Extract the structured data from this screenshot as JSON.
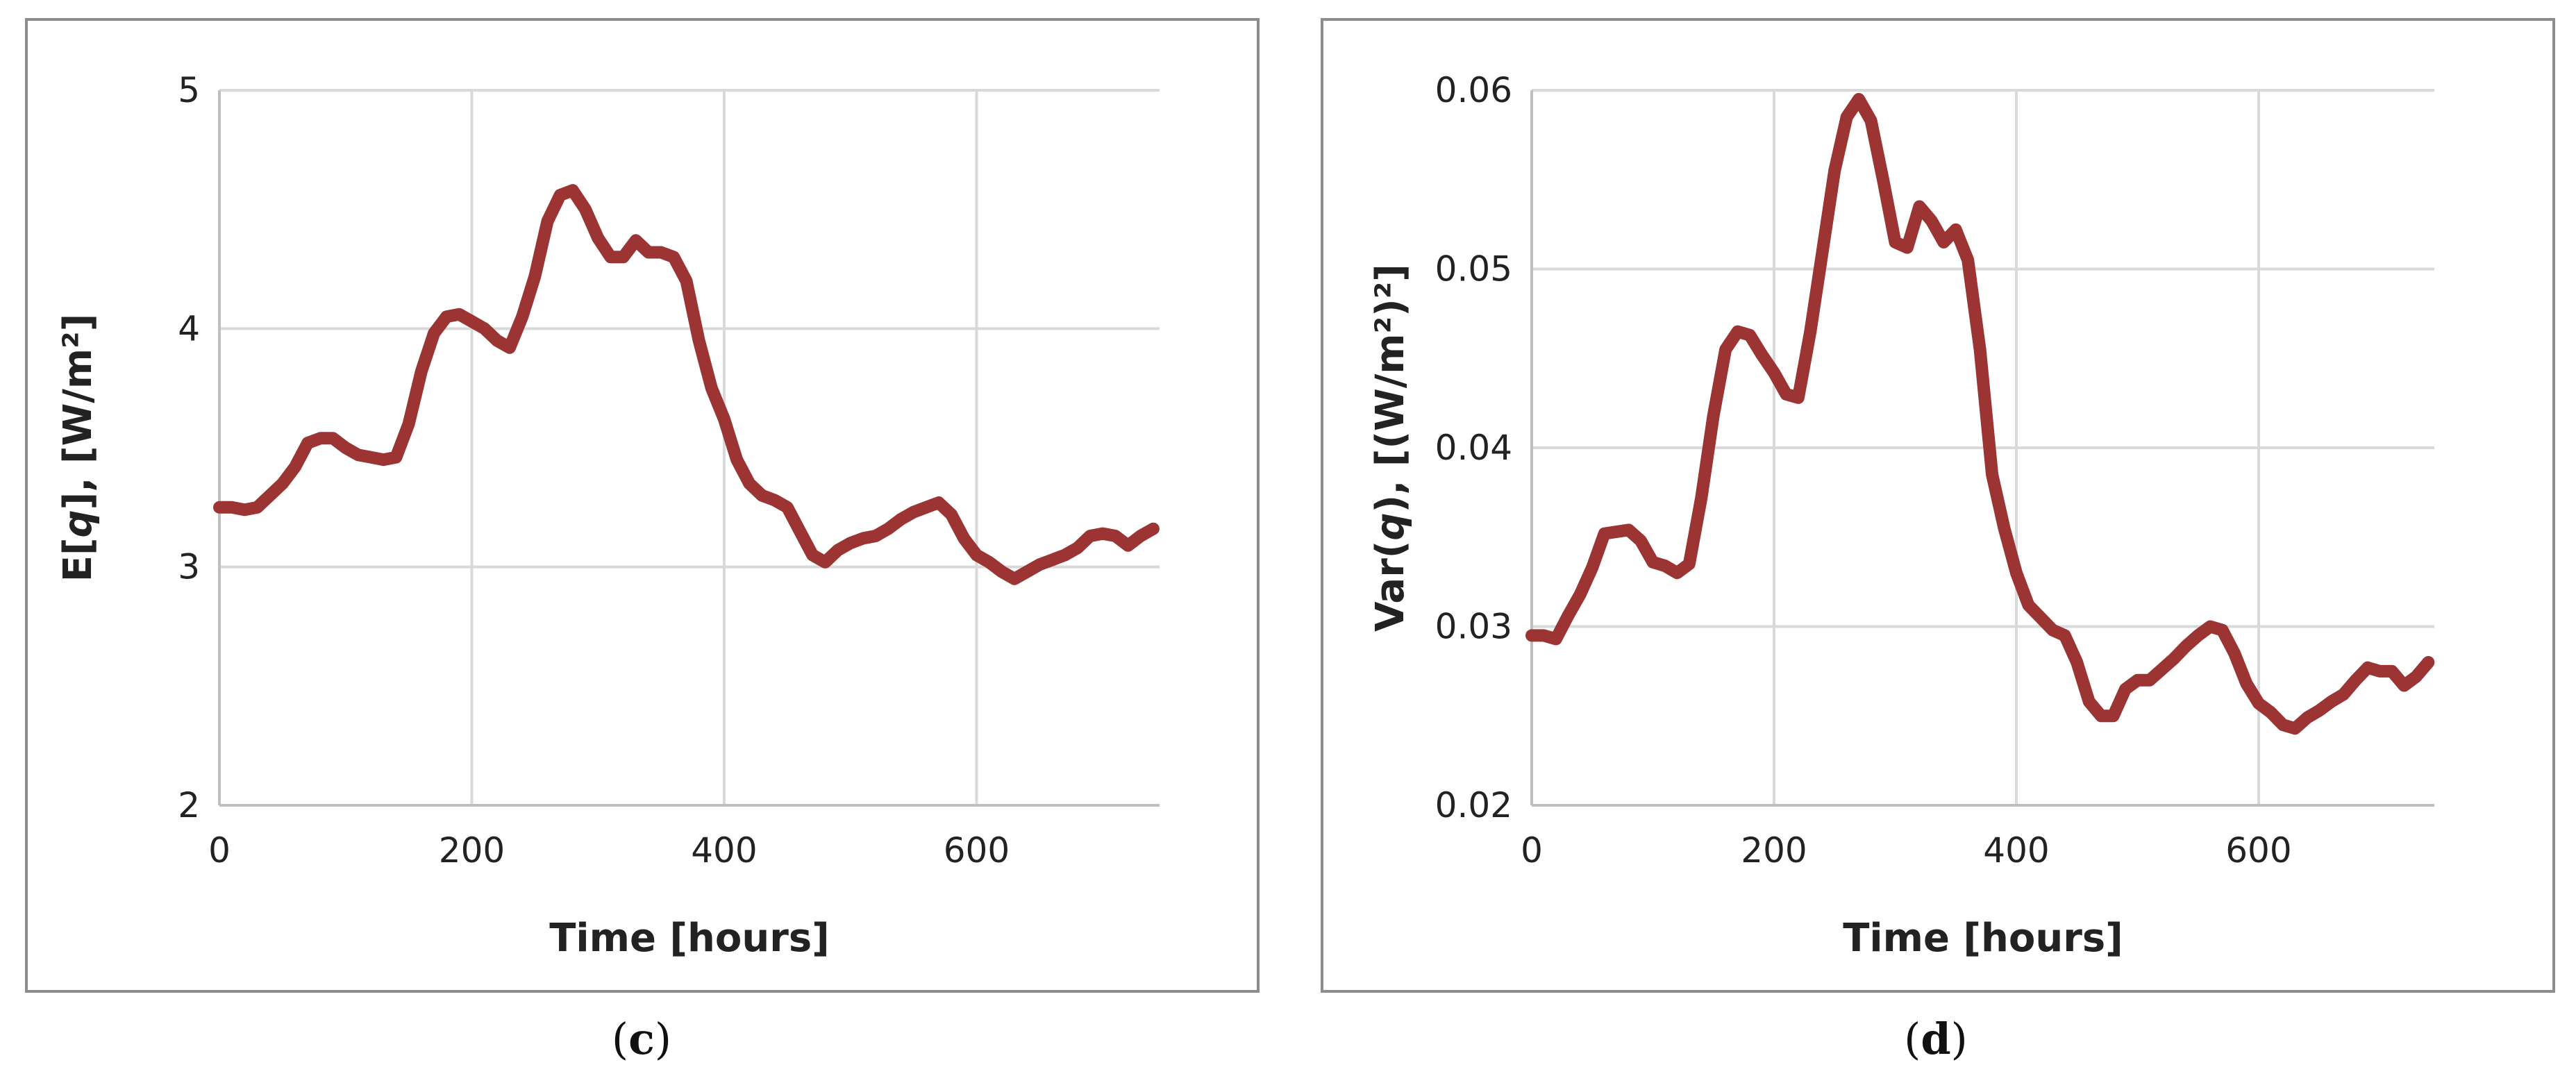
{
  "colors": {
    "series": "#9b3432",
    "grid": "#d9d9d9",
    "axis": "#bfbfbf",
    "frame": "#8c8c8c"
  },
  "captions": {
    "c_open": "(",
    "c_letter": "c",
    "c_close": ")",
    "d_open": "(",
    "d_letter": "d",
    "d_close": ")"
  },
  "chart_data": [
    {
      "type": "line",
      "panel": "c",
      "title": "",
      "xlabel": "Time [hours]",
      "ylabel": "E[q], [W/m²]",
      "ylabel_parts": {
        "prefix": "E[",
        "var": "q",
        "suffix": "], [W/m²]"
      },
      "xlim": [
        0,
        745
      ],
      "ylim": [
        2,
        5
      ],
      "x_ticks": [
        0,
        200,
        400,
        600
      ],
      "y_ticks": [
        2,
        3,
        4,
        5
      ],
      "x_tick_labels": [
        "0",
        "200",
        "400",
        "600"
      ],
      "y_tick_labels": [
        "2",
        "3",
        "4",
        "5"
      ],
      "grid": true,
      "series": [
        {
          "x": [
            0,
            10,
            20,
            30,
            40,
            50,
            60,
            70,
            80,
            90,
            100,
            110,
            120,
            130,
            140,
            150,
            160,
            170,
            180,
            190,
            200,
            210,
            220,
            230,
            240,
            250,
            260,
            270,
            280,
            290,
            300,
            310,
            320,
            330,
            340,
            350,
            360,
            370,
            380,
            390,
            400,
            410,
            420,
            430,
            440,
            450,
            460,
            470,
            480,
            490,
            500,
            510,
            520,
            530,
            540,
            550,
            560,
            570,
            580,
            590,
            600,
            610,
            620,
            630,
            640,
            650,
            660,
            670,
            680,
            690,
            700,
            710,
            720,
            730,
            740
          ],
          "y": [
            3.25,
            3.25,
            3.24,
            3.25,
            3.3,
            3.35,
            3.42,
            3.52,
            3.54,
            3.54,
            3.5,
            3.47,
            3.46,
            3.45,
            3.46,
            3.6,
            3.82,
            3.98,
            4.05,
            4.06,
            4.03,
            4.0,
            3.95,
            3.92,
            4.05,
            4.22,
            4.45,
            4.56,
            4.58,
            4.5,
            4.38,
            4.3,
            4.3,
            4.37,
            4.32,
            4.32,
            4.3,
            4.2,
            3.95,
            3.75,
            3.62,
            3.45,
            3.35,
            3.3,
            3.28,
            3.25,
            3.15,
            3.05,
            3.02,
            3.07,
            3.1,
            3.12,
            3.13,
            3.16,
            3.2,
            3.23,
            3.25,
            3.27,
            3.22,
            3.12,
            3.05,
            3.02,
            2.98,
            2.95,
            2.98,
            3.01,
            3.03,
            3.05,
            3.08,
            3.13,
            3.14,
            3.13,
            3.09,
            3.13,
            3.16
          ]
        }
      ]
    },
    {
      "type": "line",
      "panel": "d",
      "title": "",
      "xlabel": "Time [hours]",
      "ylabel": "Var(q), [(W/m²)²]",
      "ylabel_parts": {
        "prefix": "Var(",
        "var": "q",
        "suffix": "), [(W/m²)²]"
      },
      "xlim": [
        0,
        745
      ],
      "ylim": [
        0.02,
        0.06
      ],
      "x_ticks": [
        0,
        200,
        400,
        600
      ],
      "y_ticks": [
        0.02,
        0.03,
        0.04,
        0.05,
        0.06
      ],
      "x_tick_labels": [
        "0",
        "200",
        "400",
        "600"
      ],
      "y_tick_labels": [
        "0.02",
        "0.03",
        "0.04",
        "0.05",
        "0.06"
      ],
      "grid": true,
      "series": [
        {
          "x": [
            0,
            10,
            20,
            30,
            40,
            50,
            60,
            70,
            80,
            90,
            100,
            110,
            120,
            130,
            140,
            150,
            160,
            170,
            180,
            190,
            200,
            210,
            220,
            230,
            240,
            250,
            260,
            270,
            280,
            290,
            300,
            310,
            320,
            330,
            340,
            350,
            360,
            370,
            380,
            390,
            400,
            410,
            420,
            430,
            440,
            450,
            460,
            470,
            480,
            490,
            500,
            510,
            520,
            530,
            540,
            550,
            560,
            570,
            580,
            590,
            600,
            610,
            620,
            630,
            640,
            650,
            660,
            670,
            680,
            690,
            700,
            710,
            720,
            730,
            740
          ],
          "y": [
            0.0295,
            0.0295,
            0.0293,
            0.0306,
            0.0318,
            0.0333,
            0.0352,
            0.0353,
            0.0354,
            0.0348,
            0.0336,
            0.0334,
            0.033,
            0.0335,
            0.0372,
            0.0418,
            0.0455,
            0.0465,
            0.0463,
            0.0452,
            0.0442,
            0.043,
            0.0428,
            0.0465,
            0.051,
            0.0555,
            0.0585,
            0.0595,
            0.0583,
            0.055,
            0.0515,
            0.0512,
            0.0535,
            0.0527,
            0.0515,
            0.0522,
            0.0505,
            0.0455,
            0.0385,
            0.0355,
            0.033,
            0.0312,
            0.0305,
            0.0298,
            0.0295,
            0.028,
            0.0258,
            0.025,
            0.025,
            0.0265,
            0.027,
            0.027,
            0.0276,
            0.0282,
            0.0289,
            0.0295,
            0.03,
            0.0298,
            0.0285,
            0.0268,
            0.0257,
            0.0252,
            0.0245,
            0.0243,
            0.0249,
            0.0253,
            0.0258,
            0.0262,
            0.027,
            0.0277,
            0.0275,
            0.0275,
            0.0267,
            0.0272,
            0.028
          ]
        }
      ]
    }
  ]
}
